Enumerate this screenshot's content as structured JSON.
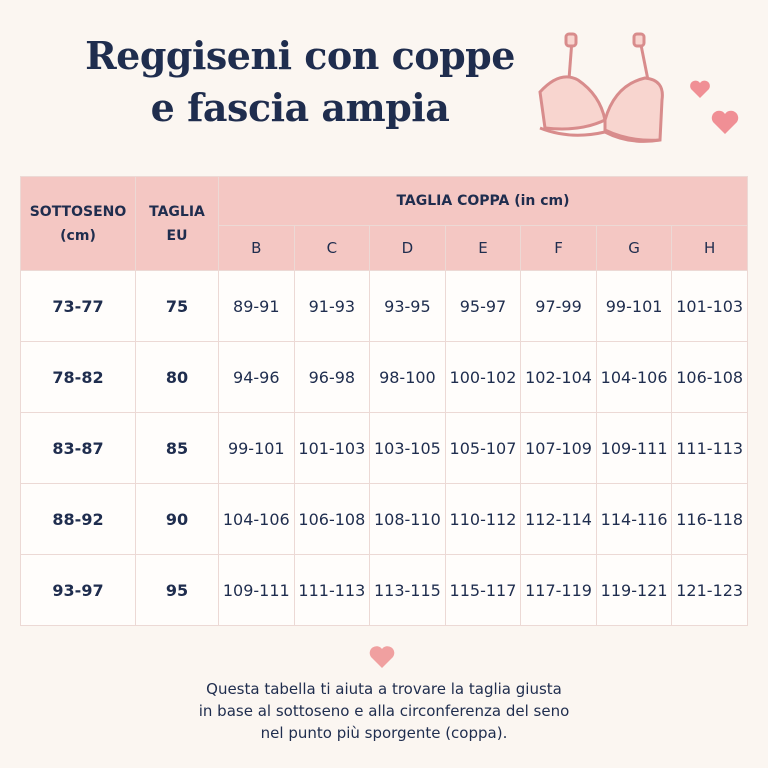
{
  "header": {
    "title": [
      "Reggiseni con coppe",
      "e fascia ampia"
    ]
  },
  "table": {
    "band_header": "SOTTOSENO (cm)",
    "size_header": "TAGLIA EU",
    "cup_header": "TAGLIA COPPA (in cm)",
    "cups": [
      "B",
      "C",
      "D",
      "E",
      "F",
      "G",
      "H"
    ],
    "rows": [
      [
        "73-77",
        "75",
        "89-91",
        "91-93",
        "93-95",
        "95-97",
        "97-99",
        "99-101",
        "101-103"
      ],
      [
        "78-82",
        "80",
        "94-96",
        "96-98",
        "98-100",
        "100-102",
        "102-104",
        "104-106",
        "106-108"
      ],
      [
        "83-87",
        "85",
        "99-101",
        "101-103",
        "103-105",
        "105-107",
        "107-109",
        "109-111",
        "111-113"
      ],
      [
        "88-92",
        "90",
        "104-106",
        "106-108",
        "108-110",
        "110-112",
        "112-114",
        "114-116",
        "116-118"
      ],
      [
        "93-97",
        "95",
        "109-111",
        "111-113",
        "113-115",
        "115-117",
        "117-119",
        "119-121",
        "121-123"
      ]
    ]
  },
  "footer": {
    "lines": [
      "Questa tabella ti aiuta a trovare la taglia giusta",
      "in base al sottoseno e alla circonferenza del seno",
      "nel punto più sporgente (coppa)."
    ]
  }
}
